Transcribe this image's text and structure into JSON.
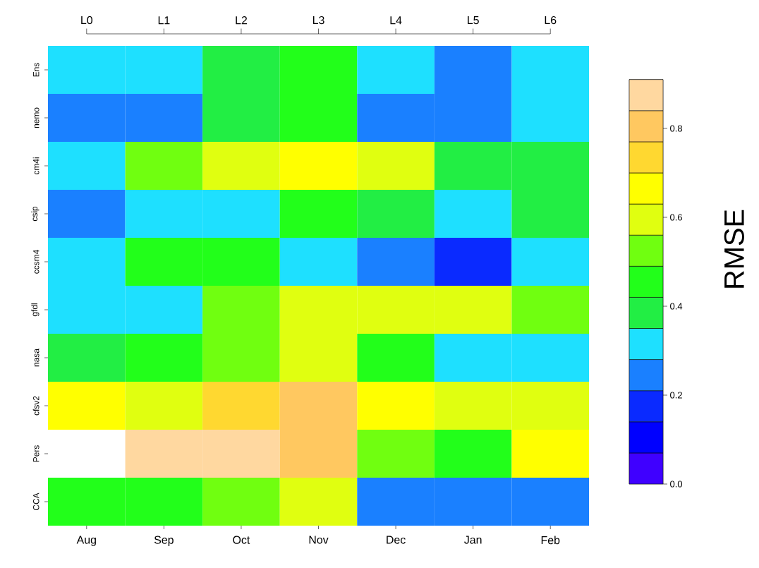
{
  "chart_data": {
    "type": "heatmap",
    "categories": [
      "Aug",
      "Sep",
      "Oct",
      "Nov",
      "Dec",
      "Jan",
      "Feb"
    ],
    "y_categories": [
      "Ens",
      "nemo",
      "cm4i",
      "csip",
      "ccsm4",
      "gfdl",
      "nasa",
      "cfsv2",
      "Pers",
      "CCA"
    ],
    "cells": [
      [
        0.31,
        0.31,
        0.38,
        0.45,
        0.31,
        0.24,
        0.31
      ],
      [
        0.24,
        0.24,
        0.38,
        0.45,
        0.24,
        0.24,
        0.31
      ],
      [
        0.31,
        0.52,
        0.59,
        0.66,
        0.59,
        0.38,
        0.38
      ],
      [
        0.24,
        0.31,
        0.31,
        0.45,
        0.38,
        0.31,
        0.38
      ],
      [
        0.31,
        0.45,
        0.45,
        0.31,
        0.24,
        0.17,
        0.31
      ],
      [
        0.31,
        0.31,
        0.52,
        0.59,
        0.59,
        0.59,
        0.52
      ],
      [
        0.38,
        0.45,
        0.52,
        0.59,
        0.45,
        0.31,
        0.31
      ],
      [
        0.66,
        0.59,
        0.73,
        0.8,
        0.66,
        0.59,
        0.59
      ],
      [
        null,
        0.87,
        0.87,
        0.8,
        0.52,
        0.45,
        0.66
      ],
      [
        0.45,
        0.45,
        0.52,
        0.59,
        0.24,
        0.24,
        0.24
      ]
    ],
    "clim": [
      0,
      0.91
    ],
    "cticks": [
      {
        "value": 0,
        "label": "0.0"
      },
      {
        "value": 0.2,
        "label": "0.2"
      },
      {
        "value": 0.4,
        "label": "0.4"
      },
      {
        "value": 0.6,
        "label": "0.6"
      },
      {
        "value": 0.8,
        "label": "0.8"
      }
    ],
    "clabel": "RMSE",
    "annotations": [
      "L0",
      "L1",
      "L2",
      "L3",
      "L4",
      "L5",
      "L6"
    ]
  }
}
